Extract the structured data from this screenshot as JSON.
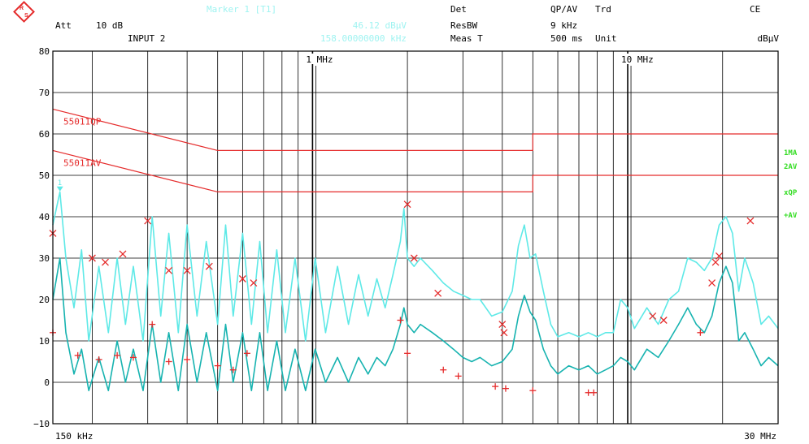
{
  "header": {
    "att_label": "Att",
    "att_value": "10 dB",
    "input": "INPUT 2",
    "marker_title": "Marker 1 [T1]",
    "marker_level": "46.12 dBµV",
    "marker_freq": "158.00000000 kHz",
    "det_label": "Det",
    "det_value": "QP/AV",
    "trd_label": "Trd",
    "resbw_label": "ResBW",
    "resbw_value": "9 kHz",
    "meas_label": "Meas T",
    "meas_value": "500 ms",
    "unit_label": "Unit",
    "unit_value": "dBµV",
    "ce": "CE"
  },
  "side_labels": [
    "1MA",
    "2AV",
    "xQP",
    "+AV"
  ],
  "colors": {
    "trace_max": "#5ee9e7",
    "trace_av": "#17b3b0",
    "limit": "#e52b2b",
    "marker": "#e52b2b",
    "grid": "#000000",
    "side_label": "#33dd22"
  },
  "chart_data": {
    "type": "line",
    "x_scale": "log",
    "x_unit": "Hz",
    "xlim": [
      150000,
      30000000
    ],
    "ylim": [
      -10,
      80
    ],
    "yticks": [
      -10,
      0,
      10,
      20,
      30,
      40,
      50,
      60,
      70,
      80
    ],
    "x_axis_labels": {
      "start": "150 kHz",
      "end": "30 MHz"
    },
    "decade_labels": [
      {
        "x": 1000000,
        "label": "1 MHz"
      },
      {
        "x": 10000000,
        "label": "10 MHz"
      }
    ],
    "limit_lines": [
      {
        "name": "55011QP",
        "points": [
          [
            150000,
            66
          ],
          [
            500000,
            56
          ],
          [
            5000000,
            56
          ],
          [
            5000000,
            60
          ],
          [
            30000000,
            60
          ]
        ]
      },
      {
        "name": "55011AV",
        "points": [
          [
            150000,
            56
          ],
          [
            500000,
            46
          ],
          [
            5000000,
            46
          ],
          [
            5000000,
            50
          ],
          [
            30000000,
            50
          ]
        ]
      }
    ],
    "series": [
      {
        "name": "1MA",
        "style": "max-peak",
        "points": [
          [
            150000,
            38
          ],
          [
            158000,
            46
          ],
          [
            165000,
            30
          ],
          [
            175000,
            18
          ],
          [
            185000,
            32
          ],
          [
            195000,
            10
          ],
          [
            210000,
            28
          ],
          [
            225000,
            12
          ],
          [
            240000,
            30
          ],
          [
            255000,
            14
          ],
          [
            270000,
            28
          ],
          [
            290000,
            10
          ],
          [
            310000,
            40
          ],
          [
            330000,
            16
          ],
          [
            350000,
            36
          ],
          [
            375000,
            12
          ],
          [
            400000,
            38
          ],
          [
            430000,
            16
          ],
          [
            460000,
            34
          ],
          [
            500000,
            14
          ],
          [
            530000,
            38
          ],
          [
            560000,
            16
          ],
          [
            600000,
            36
          ],
          [
            640000,
            14
          ],
          [
            680000,
            34
          ],
          [
            720000,
            12
          ],
          [
            770000,
            32
          ],
          [
            820000,
            12
          ],
          [
            880000,
            30
          ],
          [
            950000,
            10
          ],
          [
            1020000,
            30
          ],
          [
            1100000,
            12
          ],
          [
            1200000,
            28
          ],
          [
            1300000,
            14
          ],
          [
            1400000,
            26
          ],
          [
            1500000,
            16
          ],
          [
            1600000,
            25
          ],
          [
            1700000,
            18
          ],
          [
            1800000,
            26
          ],
          [
            1900000,
            34
          ],
          [
            1950000,
            42
          ],
          [
            2000000,
            30
          ],
          [
            2100000,
            28
          ],
          [
            2200000,
            30
          ],
          [
            2400000,
            27
          ],
          [
            2600000,
            24
          ],
          [
            2800000,
            22
          ],
          [
            3000000,
            21
          ],
          [
            3200000,
            20
          ],
          [
            3400000,
            20
          ],
          [
            3700000,
            16
          ],
          [
            4000000,
            17
          ],
          [
            4300000,
            22
          ],
          [
            4500000,
            33
          ],
          [
            4700000,
            38
          ],
          [
            4900000,
            30
          ],
          [
            5100000,
            31
          ],
          [
            5400000,
            22
          ],
          [
            5700000,
            14
          ],
          [
            6000000,
            11
          ],
          [
            6500000,
            12
          ],
          [
            7000000,
            11
          ],
          [
            7500000,
            12
          ],
          [
            8000000,
            11
          ],
          [
            8500000,
            12
          ],
          [
            9000000,
            12
          ],
          [
            9500000,
            20
          ],
          [
            10000000,
            18
          ],
          [
            10500000,
            13
          ],
          [
            11500000,
            18
          ],
          [
            12500000,
            14
          ],
          [
            13500000,
            20
          ],
          [
            14500000,
            22
          ],
          [
            15500000,
            30
          ],
          [
            16500000,
            29
          ],
          [
            17500000,
            27
          ],
          [
            18500000,
            30
          ],
          [
            19500000,
            38
          ],
          [
            20500000,
            40
          ],
          [
            21500000,
            36
          ],
          [
            22500000,
            22
          ],
          [
            23500000,
            30
          ],
          [
            25000000,
            24
          ],
          [
            26500000,
            14
          ],
          [
            28000000,
            16
          ],
          [
            30000000,
            13
          ]
        ]
      },
      {
        "name": "2AV",
        "style": "average",
        "points": [
          [
            150000,
            20
          ],
          [
            158000,
            30
          ],
          [
            165000,
            12
          ],
          [
            175000,
            2
          ],
          [
            185000,
            8
          ],
          [
            195000,
            -2
          ],
          [
            210000,
            6
          ],
          [
            225000,
            -2
          ],
          [
            240000,
            10
          ],
          [
            255000,
            0
          ],
          [
            270000,
            8
          ],
          [
            290000,
            -2
          ],
          [
            310000,
            14
          ],
          [
            330000,
            0
          ],
          [
            350000,
            12
          ],
          [
            375000,
            -2
          ],
          [
            400000,
            14
          ],
          [
            430000,
            0
          ],
          [
            460000,
            12
          ],
          [
            500000,
            -2
          ],
          [
            530000,
            14
          ],
          [
            560000,
            0
          ],
          [
            600000,
            12
          ],
          [
            640000,
            -2
          ],
          [
            680000,
            12
          ],
          [
            720000,
            -2
          ],
          [
            770000,
            10
          ],
          [
            820000,
            -2
          ],
          [
            880000,
            8
          ],
          [
            950000,
            -2
          ],
          [
            1020000,
            8
          ],
          [
            1100000,
            0
          ],
          [
            1200000,
            6
          ],
          [
            1300000,
            0
          ],
          [
            1400000,
            6
          ],
          [
            1500000,
            2
          ],
          [
            1600000,
            6
          ],
          [
            1700000,
            4
          ],
          [
            1800000,
            8
          ],
          [
            1900000,
            14
          ],
          [
            1950000,
            18
          ],
          [
            2000000,
            14
          ],
          [
            2100000,
            12
          ],
          [
            2200000,
            14
          ],
          [
            2400000,
            12
          ],
          [
            2600000,
            10
          ],
          [
            2800000,
            8
          ],
          [
            3000000,
            6
          ],
          [
            3200000,
            5
          ],
          [
            3400000,
            6
          ],
          [
            3700000,
            4
          ],
          [
            4000000,
            5
          ],
          [
            4300000,
            8
          ],
          [
            4500000,
            16
          ],
          [
            4700000,
            21
          ],
          [
            4900000,
            17
          ],
          [
            5100000,
            15
          ],
          [
            5400000,
            8
          ],
          [
            5700000,
            4
          ],
          [
            6000000,
            2
          ],
          [
            6500000,
            4
          ],
          [
            7000000,
            3
          ],
          [
            7500000,
            4
          ],
          [
            8000000,
            2
          ],
          [
            8500000,
            3
          ],
          [
            9000000,
            4
          ],
          [
            9500000,
            6
          ],
          [
            10000000,
            5
          ],
          [
            10500000,
            3
          ],
          [
            11500000,
            8
          ],
          [
            12500000,
            6
          ],
          [
            13500000,
            10
          ],
          [
            14500000,
            14
          ],
          [
            15500000,
            18
          ],
          [
            16500000,
            14
          ],
          [
            17500000,
            12
          ],
          [
            18500000,
            16
          ],
          [
            19500000,
            24
          ],
          [
            20500000,
            28
          ],
          [
            21500000,
            24
          ],
          [
            22500000,
            10
          ],
          [
            23500000,
            12
          ],
          [
            25000000,
            8
          ],
          [
            26500000,
            4
          ],
          [
            28000000,
            6
          ],
          [
            30000000,
            4
          ]
        ]
      }
    ],
    "qp_markers": [
      [
        150000,
        36
      ],
      [
        200000,
        30
      ],
      [
        220000,
        29
      ],
      [
        250000,
        31
      ],
      [
        300000,
        39
      ],
      [
        350000,
        27
      ],
      [
        400000,
        27
      ],
      [
        470000,
        28
      ],
      [
        600000,
        25
      ],
      [
        650000,
        24
      ],
      [
        2000000,
        43
      ],
      [
        2100000,
        30
      ],
      [
        2500000,
        21.5
      ],
      [
        4000000,
        14
      ],
      [
        4050000,
        12
      ],
      [
        12000000,
        16
      ],
      [
        13000000,
        15
      ],
      [
        18500000,
        24
      ],
      [
        19000000,
        29
      ],
      [
        19500000,
        30.5
      ],
      [
        24500000,
        39
      ]
    ],
    "av_markers": [
      [
        150000,
        12
      ],
      [
        180000,
        6.5
      ],
      [
        210000,
        5.5
      ],
      [
        240000,
        6.5
      ],
      [
        270000,
        6
      ],
      [
        310000,
        14
      ],
      [
        350000,
        5
      ],
      [
        400000,
        5.5
      ],
      [
        500000,
        4
      ],
      [
        560000,
        3
      ],
      [
        620000,
        7
      ],
      [
        1900000,
        15
      ],
      [
        2000000,
        7
      ],
      [
        2600000,
        3
      ],
      [
        2900000,
        1.5
      ],
      [
        3800000,
        -1
      ],
      [
        4100000,
        -1.5
      ],
      [
        5000000,
        -2
      ],
      [
        7500000,
        -2.5
      ],
      [
        7800000,
        -2.5
      ],
      [
        17000000,
        12
      ]
    ],
    "marker_1": {
      "x": 158000,
      "y": 46.12,
      "label": "1"
    }
  }
}
